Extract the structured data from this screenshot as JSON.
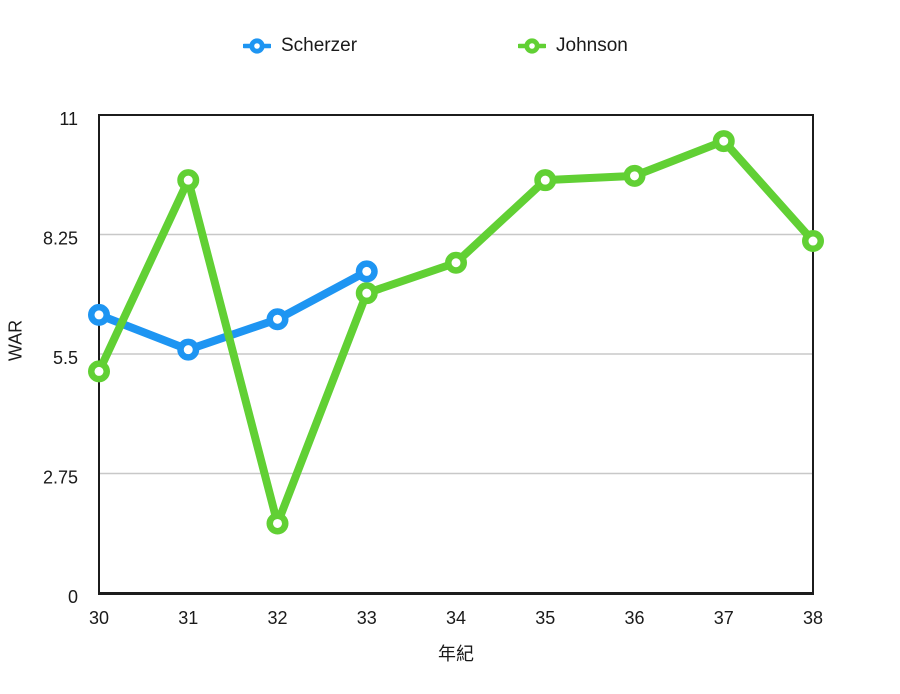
{
  "legend": {
    "items": [
      {
        "label": "Scherzer",
        "color": "#1E95F2"
      },
      {
        "label": "Johnson",
        "color": "#61D034"
      }
    ]
  },
  "chart_data": {
    "type": "line",
    "x": [
      30,
      31,
      32,
      33,
      34,
      35,
      36,
      37,
      38
    ],
    "xlabel": "年紀",
    "ylabel": "WAR",
    "ylim": [
      0,
      11
    ],
    "yticks": [
      0,
      2.75,
      5.5,
      8.25,
      11
    ],
    "ytick_labels": [
      "0",
      "2.75",
      "5.5",
      "8.25",
      "11"
    ],
    "xtick_labels": [
      "30",
      "31",
      "32",
      "33",
      "34",
      "35",
      "36",
      "37",
      "38"
    ],
    "grid": true,
    "legend_position": "top",
    "marker": "donut",
    "series": [
      {
        "name": "Scherzer",
        "color": "#1E95F2",
        "values": [
          6.4,
          5.6,
          6.3,
          7.4,
          null,
          null,
          null,
          null,
          null
        ]
      },
      {
        "name": "Johnson",
        "color": "#61D034",
        "values": [
          5.1,
          9.5,
          1.6,
          6.9,
          7.6,
          9.5,
          9.6,
          10.4,
          8.1
        ]
      }
    ],
    "colors": {
      "gridline": "#C8C8C8",
      "axis": "#1C1C1C",
      "background": "#FFFFFF",
      "text": "#1A1A1A"
    }
  }
}
